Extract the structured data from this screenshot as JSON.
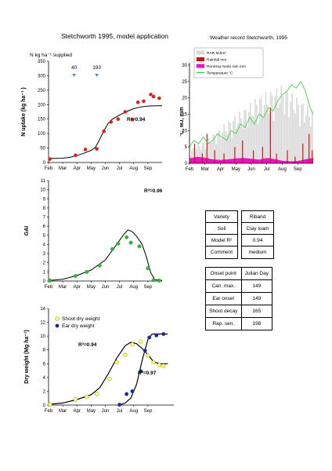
{
  "page_title": "Stetchworth 1995, model application",
  "weather_title": "Weather record Stetchworth, 1995",
  "info_table": {
    "rows": [
      {
        "label": "Variety",
        "value": "Riband"
      },
      {
        "label": "Soil",
        "value": "Clay loam"
      },
      {
        "label": "Model R²",
        "value": "0.94"
      },
      {
        "label": "Comment",
        "value": "medium"
      }
    ]
  },
  "onset_table": {
    "header": [
      "Onset point",
      "Julian Day"
    ],
    "rows": [
      [
        "Can. max.",
        "149"
      ],
      [
        "Ear onset",
        "149"
      ],
      [
        "Shoot decay",
        "165"
      ],
      [
        "Rap. sen.",
        "198"
      ]
    ]
  },
  "colors": {
    "n_points": "#dd2222",
    "gai_points": "#33bb33",
    "shoot_points": "#ffff66",
    "ear_points": "#1a2a9a",
    "radiation": "#d9d9d9",
    "rainfall": "#cc1111",
    "running_rain": "#ee11cc",
    "temperature": "#33cc33",
    "arrow": "#5a8fd0"
  },
  "chart_data": [
    {
      "type": "scatter",
      "id": "n_uptake",
      "title": "",
      "xlabel": "",
      "ylabel": "N uptake (kg ha⁻¹ )",
      "x_ticks": [
        "Feb",
        "Mar",
        "Apr",
        "May",
        "Jun",
        "Jul",
        "Aug",
        "Sep"
      ],
      "ylim": [
        0,
        350
      ],
      "y_ticks": [
        0,
        50,
        100,
        150,
        200,
        250,
        300,
        350
      ],
      "annotation_header": "N kg ha⁻¹ supplied",
      "applications": [
        {
          "month": 1.8,
          "amount": "40"
        },
        {
          "month": 3.4,
          "amount": "193"
        }
      ],
      "r2_label": "R²=0.94",
      "observed": [
        [
          0.1,
          12
        ],
        [
          1.9,
          25
        ],
        [
          2.6,
          45
        ],
        [
          3.4,
          47
        ],
        [
          3.9,
          108
        ],
        [
          4.4,
          140
        ],
        [
          4.9,
          150
        ],
        [
          5.4,
          175
        ],
        [
          5.9,
          148
        ],
        [
          6.3,
          208
        ],
        [
          6.7,
          212
        ],
        [
          7.2,
          235
        ],
        [
          7.4,
          228
        ],
        [
          7.8,
          222
        ]
      ],
      "model": [
        [
          0.0,
          14
        ],
        [
          0.5,
          14
        ],
        [
          1.0,
          15
        ],
        [
          1.5,
          18
        ],
        [
          2.0,
          24
        ],
        [
          2.5,
          32
        ],
        [
          3.0,
          42
        ],
        [
          3.3,
          52
        ],
        [
          3.6,
          80
        ],
        [
          3.9,
          110
        ],
        [
          4.2,
          135
        ],
        [
          4.5,
          150
        ],
        [
          5.0,
          164
        ],
        [
          5.5,
          176
        ],
        [
          6.0,
          186
        ],
        [
          6.5,
          192
        ],
        [
          7.0,
          195
        ],
        [
          7.5,
          196
        ],
        [
          8.0,
          196
        ]
      ]
    },
    {
      "type": "area",
      "id": "weather",
      "title": "Weather record Stetchworth, 1995",
      "ylabel": "°C, MJ, mm",
      "x_ticks": [
        "Feb",
        "Mar",
        "Apr",
        "May",
        "Jun",
        "Jul",
        "Aug",
        "Sep"
      ],
      "ylim": [
        0,
        30
      ],
      "y_ticks": [
        0,
        5,
        10,
        15,
        20,
        25,
        30
      ],
      "legend": [
        "RAR MJ/m²",
        "Rainfall mm",
        "Running mean rain mm",
        "Temperature °C"
      ],
      "legend_position": "top-left",
      "radiation": [
        [
          0.0,
          4
        ],
        [
          0.5,
          6
        ],
        [
          1.0,
          7
        ],
        [
          1.5,
          9
        ],
        [
          2.0,
          11
        ],
        [
          2.5,
          13
        ],
        [
          3.0,
          15
        ],
        [
          3.5,
          17
        ],
        [
          4.0,
          19
        ],
        [
          4.5,
          21
        ],
        [
          5.0,
          22
        ],
        [
          5.5,
          23
        ],
        [
          6.0,
          24
        ],
        [
          6.5,
          22
        ],
        [
          7.0,
          20
        ],
        [
          7.5,
          18
        ],
        [
          8.0,
          16
        ]
      ],
      "temperature": [
        [
          0.0,
          5
        ],
        [
          0.3,
          7
        ],
        [
          0.6,
          6
        ],
        [
          0.9,
          8
        ],
        [
          1.2,
          6
        ],
        [
          1.5,
          7
        ],
        [
          1.8,
          9
        ],
        [
          2.1,
          8
        ],
        [
          2.4,
          7
        ],
        [
          2.7,
          10
        ],
        [
          3.0,
          9
        ],
        [
          3.3,
          12
        ],
        [
          3.6,
          11
        ],
        [
          3.9,
          14
        ],
        [
          4.2,
          12
        ],
        [
          4.5,
          15
        ],
        [
          4.8,
          14
        ],
        [
          5.1,
          17
        ],
        [
          5.4,
          16
        ],
        [
          5.7,
          19
        ],
        [
          6.0,
          21
        ],
        [
          6.3,
          22
        ],
        [
          6.6,
          24
        ],
        [
          6.9,
          23
        ],
        [
          7.2,
          25
        ],
        [
          7.5,
          22
        ],
        [
          7.8,
          17
        ],
        [
          8.0,
          15
        ]
      ],
      "rainfall": [
        [
          0.3,
          6
        ],
        [
          0.8,
          3
        ],
        [
          1.1,
          9
        ],
        [
          1.6,
          4
        ],
        [
          2.2,
          3
        ],
        [
          2.9,
          5
        ],
        [
          3.4,
          7
        ],
        [
          4.1,
          4
        ],
        [
          4.7,
          5
        ],
        [
          5.2,
          17
        ],
        [
          5.6,
          3
        ],
        [
          6.3,
          4
        ],
        [
          6.8,
          2
        ],
        [
          7.3,
          6
        ],
        [
          7.7,
          9
        ],
        [
          7.9,
          4
        ]
      ],
      "running_rain": [
        [
          0.0,
          1.5
        ],
        [
          0.5,
          2.0
        ],
        [
          1.0,
          1.7
        ],
        [
          1.5,
          1.2
        ],
        [
          2.0,
          1.0
        ],
        [
          2.5,
          1.2
        ],
        [
          3.0,
          1.5
        ],
        [
          3.5,
          1.6
        ],
        [
          4.0,
          1.4
        ],
        [
          4.5,
          1.1
        ],
        [
          5.0,
          1.6
        ],
        [
          5.5,
          1.3
        ],
        [
          6.0,
          0.8
        ],
        [
          6.5,
          0.6
        ],
        [
          7.0,
          0.7
        ],
        [
          7.5,
          1.2
        ],
        [
          8.0,
          1.6
        ]
      ]
    },
    {
      "type": "line",
      "id": "gai",
      "ylabel": "GAI",
      "x_ticks": [
        "Feb",
        "Mar",
        "Apr",
        "May",
        "Jun",
        "Jul",
        "Aug",
        "Sep"
      ],
      "ylim": [
        0,
        11
      ],
      "y_ticks": [
        0,
        1,
        2,
        3,
        4,
        5,
        6,
        7,
        8,
        9,
        10,
        11
      ],
      "r2_label": "R²=0.96",
      "observed": [
        [
          0.1,
          0.05
        ],
        [
          1.9,
          0.55
        ],
        [
          2.7,
          1.0
        ],
        [
          3.6,
          1.7
        ],
        [
          4.5,
          3.5
        ],
        [
          4.9,
          4.1
        ],
        [
          5.5,
          4.8
        ],
        [
          5.8,
          4.2
        ],
        [
          6.4,
          3.8
        ],
        [
          7.0,
          1.4
        ],
        [
          7.4,
          0.1
        ],
        [
          7.8,
          0.05
        ]
      ],
      "model": [
        [
          0.0,
          0.05
        ],
        [
          1.0,
          0.2
        ],
        [
          2.0,
          0.6
        ],
        [
          3.0,
          1.2
        ],
        [
          4.0,
          2.3
        ],
        [
          4.7,
          3.8
        ],
        [
          5.3,
          5.1
        ],
        [
          5.6,
          5.6
        ],
        [
          5.9,
          5.4
        ],
        [
          6.2,
          4.9
        ],
        [
          6.6,
          4.0
        ],
        [
          6.9,
          2.6
        ],
        [
          7.2,
          0.9
        ],
        [
          7.5,
          0.15
        ],
        [
          8.0,
          0.05
        ]
      ]
    },
    {
      "type": "line",
      "id": "dry_weight",
      "ylabel": "Dry weight (Mg ha⁻¹)",
      "x_ticks": [
        "Feb",
        "Mar",
        "Apr",
        "May",
        "Jun",
        "Jul",
        "Aug",
        "Sep"
      ],
      "ylim": [
        0,
        14
      ],
      "y_ticks": [
        0,
        2,
        4,
        6,
        8,
        10,
        12,
        14
      ],
      "legend": [
        "Shoot dry weight",
        "Ear dry weight"
      ],
      "legend_position": "top-left",
      "r2_shoot": "R²=0.94",
      "r2_ear": "R²=0.97",
      "series": [
        {
          "name": "Shoot dry weight",
          "observed": [
            [
              0.1,
              0.1
            ],
            [
              1.9,
              0.8
            ],
            [
              2.7,
              1.2
            ],
            [
              3.4,
              1.6
            ],
            [
              4.3,
              3.8
            ],
            [
              4.8,
              6.2
            ],
            [
              5.4,
              7.3
            ],
            [
              5.9,
              8.8
            ],
            [
              6.5,
              9.2
            ],
            [
              7.0,
              7.2
            ],
            [
              7.4,
              6.2
            ],
            [
              7.8,
              5.8
            ],
            [
              8.1,
              5.7
            ]
          ],
          "model": [
            [
              0.0,
              0.1
            ],
            [
              1.0,
              0.3
            ],
            [
              2.0,
              0.8
            ],
            [
              3.0,
              1.5
            ],
            [
              3.6,
              2.5
            ],
            [
              4.2,
              4.5
            ],
            [
              4.8,
              6.8
            ],
            [
              5.4,
              8.6
            ],
            [
              5.8,
              9.1
            ],
            [
              6.2,
              8.9
            ],
            [
              6.6,
              8.2
            ],
            [
              7.0,
              7.3
            ],
            [
              7.4,
              6.3
            ],
            [
              7.8,
              6.0
            ],
            [
              8.4,
              6.0
            ]
          ]
        },
        {
          "name": "Ear dry weight",
          "observed": [
            [
              5.0,
              0.05
            ],
            [
              5.5,
              1.6
            ],
            [
              5.9,
              2.0
            ],
            [
              6.5,
              4.9
            ],
            [
              6.8,
              7.9
            ],
            [
              7.1,
              9.8
            ],
            [
              7.6,
              10.1
            ],
            [
              8.1,
              10.3
            ]
          ],
          "model": [
            [
              5.0,
              0.0
            ],
            [
              5.4,
              0.3
            ],
            [
              5.8,
              1.0
            ],
            [
              6.2,
              3.0
            ],
            [
              6.6,
              6.5
            ],
            [
              7.0,
              9.5
            ],
            [
              7.3,
              10.3
            ],
            [
              8.4,
              10.3
            ]
          ]
        }
      ]
    }
  ]
}
